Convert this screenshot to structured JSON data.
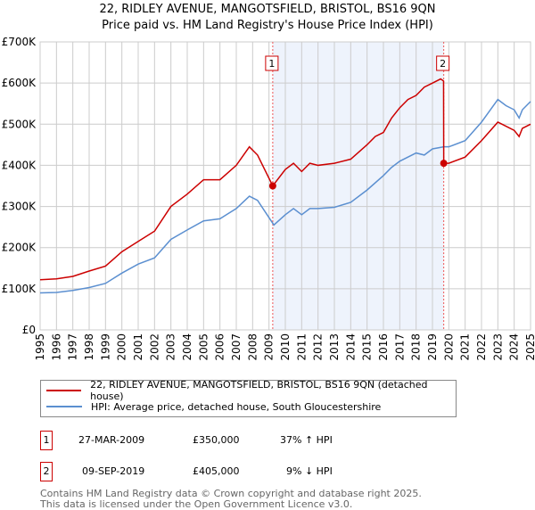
{
  "title": "22, RIDLEY AVENUE, MANGOTSFIELD, BRISTOL, BS16 9QN",
  "subtitle": "Price paid vs. HM Land Registry's House Price Index (HPI)",
  "chart_data": {
    "type": "line",
    "xlim": [
      1995,
      2025
    ],
    "ylim": [
      0,
      700000
    ],
    "yticks": [
      {
        "v": 0,
        "label": "£0"
      },
      {
        "v": 100000,
        "label": "£100K"
      },
      {
        "v": 200000,
        "label": "£200K"
      },
      {
        "v": 300000,
        "label": "£300K"
      },
      {
        "v": 400000,
        "label": "£400K"
      },
      {
        "v": 500000,
        "label": "£500K"
      },
      {
        "v": 600000,
        "label": "£600K"
      },
      {
        "v": 700000,
        "label": "£700K"
      }
    ],
    "xticks": [
      "1995",
      "1996",
      "1997",
      "1998",
      "1999",
      "2000",
      "2001",
      "2002",
      "2003",
      "2004",
      "2005",
      "2006",
      "2007",
      "2008",
      "2009",
      "2010",
      "2011",
      "2012",
      "2013",
      "2014",
      "2015",
      "2016",
      "2017",
      "2018",
      "2019",
      "2020",
      "2021",
      "2022",
      "2023",
      "2024",
      "2025"
    ],
    "grid": true,
    "shaded_range": [
      2009.23,
      2019.69
    ],
    "series": [
      {
        "name": "22, RIDLEY AVENUE, MANGOTSFIELD, BRISTOL, BS16 9QN (detached house)",
        "color": "#cc0000",
        "x": [
          1995,
          1996,
          1997,
          1998,
          1999,
          2000,
          2001,
          2002,
          2003,
          2004,
          2005,
          2006,
          2007,
          2007.8,
          2008.3,
          2009.23,
          2010,
          2010.5,
          2011,
          2011.5,
          2012,
          2013,
          2014,
          2015,
          2015.5,
          2016,
          2016.5,
          2017,
          2017.5,
          2018,
          2018.5,
          2019,
          2019.5,
          2019.68,
          2019.69,
          2020,
          2021,
          2022,
          2023,
          2024,
          2024.3,
          2024.5,
          2025
        ],
        "y": [
          122000,
          124000,
          130000,
          143000,
          155000,
          190000,
          215000,
          240000,
          300000,
          330000,
          365000,
          365000,
          400000,
          445000,
          425000,
          350000,
          390000,
          405000,
          385000,
          405000,
          400000,
          405000,
          415000,
          450000,
          470000,
          480000,
          515000,
          540000,
          560000,
          570000,
          590000,
          600000,
          610000,
          605000,
          405000,
          405000,
          420000,
          460000,
          505000,
          485000,
          470000,
          490000,
          500000
        ]
      },
      {
        "name": "HPI: Average price, detached house, South Gloucestershire",
        "color": "#5b8fd0",
        "x": [
          1995,
          1996,
          1997,
          1998,
          1999,
          2000,
          2001,
          2002,
          2003,
          2004,
          2005,
          2006,
          2007,
          2007.8,
          2008.3,
          2009.3,
          2010,
          2010.5,
          2011,
          2011.5,
          2012,
          2013,
          2014,
          2015,
          2016,
          2016.5,
          2017,
          2018,
          2018.5,
          2019,
          2019.7,
          2020,
          2021,
          2022,
          2023,
          2023.5,
          2024,
          2024.3,
          2024.5,
          2025
        ],
        "y": [
          90000,
          91000,
          96000,
          103000,
          113000,
          138000,
          160000,
          175000,
          220000,
          243000,
          265000,
          270000,
          295000,
          325000,
          315000,
          255000,
          280000,
          295000,
          280000,
          295000,
          295000,
          298000,
          310000,
          340000,
          375000,
          395000,
          410000,
          430000,
          425000,
          440000,
          445000,
          445000,
          460000,
          505000,
          560000,
          545000,
          535000,
          515000,
          535000,
          555000
        ]
      }
    ],
    "annotations": [
      {
        "label": "1",
        "x": 2009.23,
        "y": 350000
      },
      {
        "label": "2",
        "x": 2019.69,
        "y": 405000
      }
    ]
  },
  "legend": [
    {
      "label": "22, RIDLEY AVENUE, MANGOTSFIELD, BRISTOL, BS16 9QN (detached house)",
      "color": "#cc0000"
    },
    {
      "label": "HPI: Average price, detached house, South Gloucestershire",
      "color": "#5b8fd0"
    }
  ],
  "transactions": [
    {
      "num": "1",
      "date": "27-MAR-2009",
      "price": "£350,000",
      "hpi": "37% ↑ HPI"
    },
    {
      "num": "2",
      "date": "09-SEP-2019",
      "price": "£405,000",
      "hpi": "9% ↓ HPI"
    }
  ],
  "footer": [
    "Contains HM Land Registry data © Crown copyright and database right 2025.",
    "This data is licensed under the Open Government Licence v3.0."
  ]
}
